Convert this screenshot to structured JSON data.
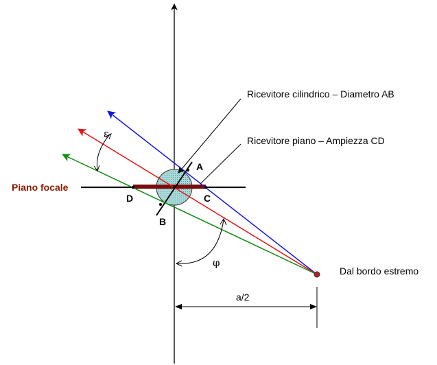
{
  "labels": {
    "cylindrical_receiver": "Ricevitore cilindrico – Diametro AB",
    "flat_receiver": "Ricevitore piano – Ampiezza CD",
    "focal_plane": "Piano focale",
    "edge_source": "Dal bordo estremo",
    "half_aperture": "a/2",
    "angle_epsilon": "ε",
    "angle_phi": "φ",
    "point_a": "A",
    "point_b": "B",
    "point_c": "C",
    "point_d": "D"
  },
  "colors": {
    "blue_ray": "#1414e6",
    "red_ray": "#e61414",
    "green_ray": "#148c14",
    "focal_plane_text": "#8b1a00",
    "flat_receiver_bar": "#7a0c0c",
    "receiver_fill": "#a8d8d8",
    "edge_point": "#b22222"
  }
}
